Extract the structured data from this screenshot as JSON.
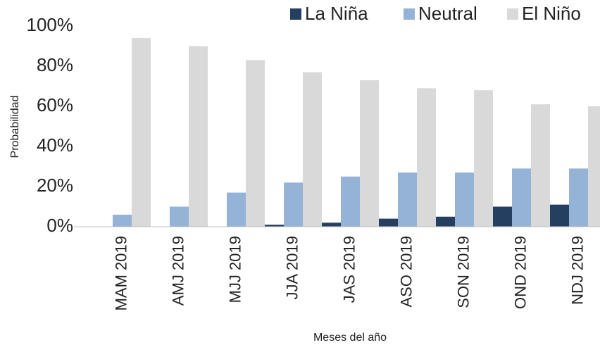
{
  "chart_data": {
    "type": "bar",
    "x_label": "Meses del año",
    "y_label": "Probabilidad",
    "categories": [
      "MAM 2019",
      "AMJ 2019",
      "MJJ 2019",
      "JJA 2019",
      "JAS 2019",
      "ASO 2019",
      "SON 2019",
      "OND 2019",
      "NDJ 2019"
    ],
    "series": [
      {
        "name": "La Niña",
        "color": "#243f60",
        "values": [
          0,
          0,
          0,
          1,
          2,
          4,
          5,
          10,
          11
        ]
      },
      {
        "name": "Neutral",
        "color": "#95b3d7",
        "values": [
          6,
          10,
          17,
          22,
          25,
          27,
          27,
          29,
          29
        ]
      },
      {
        "name": "El Niño",
        "color": "#d9d9d9",
        "values": [
          94,
          90,
          83,
          77,
          73,
          69,
          68,
          61,
          60
        ]
      }
    ],
    "ylim": [
      0,
      100
    ],
    "yticks": [
      {
        "value": 0,
        "label": "0%"
      },
      {
        "value": 20,
        "label": "20%"
      },
      {
        "value": 40,
        "label": "40%"
      },
      {
        "value": 60,
        "label": "60%"
      },
      {
        "value": 80,
        "label": "80%"
      },
      {
        "value": 100,
        "label": "100%"
      }
    ],
    "legend": "top-right",
    "grid": false
  }
}
